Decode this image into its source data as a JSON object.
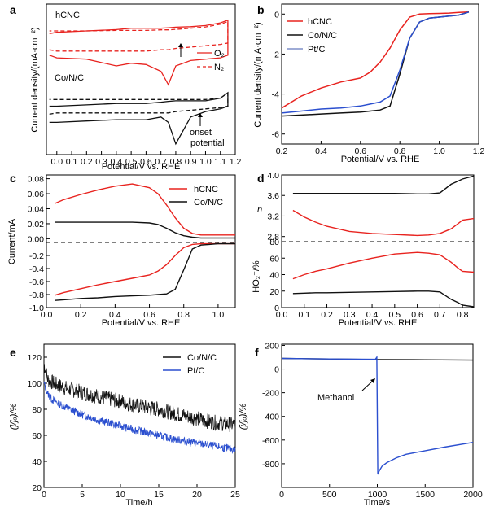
{
  "colors": {
    "red": "#e8231f",
    "black": "#111111",
    "blue": "#2b4fcf",
    "blue_light": "#7e8fc9"
  },
  "panels": {
    "a": {
      "label": "a",
      "xlabel": "Potential/V vs. RHE",
      "ylabel": "Current density/(mA·cm⁻²)",
      "xticks": [
        "0.0",
        "0.1",
        "0.2",
        "0.3",
        "0.4",
        "0.5",
        "0.6",
        "0.7",
        "0.8",
        "0.9",
        "1.0",
        "1.1",
        "1.2"
      ],
      "text_top": "hCNC",
      "text_bottom": "Co/N/C",
      "legend_o2": "O₂",
      "legend_n2": "N₂",
      "annotation_line1": "onset",
      "annotation_line2": "potential"
    },
    "b": {
      "label": "b",
      "xlabel": "Potential/V vs. RHE",
      "ylabel": "Current density/(mA·cm⁻²)",
      "xticks": [
        "0.2",
        "0.4",
        "0.6",
        "0.8",
        "1.0",
        "1.2"
      ],
      "yticks": [
        "0",
        "-2",
        "-4",
        "-6"
      ],
      "legend": [
        "hCNC",
        "Co/N/C",
        "Pt/C"
      ]
    },
    "c": {
      "label": "c",
      "xlabel": "Potential/V vs. RHE",
      "ylabel": "Current/mA",
      "xticks": [
        "0.0",
        "0.2",
        "0.4",
        "0.6",
        "0.8",
        "1.0"
      ],
      "yticks_top": [
        "0.08",
        "0.06",
        "0.04",
        "0.02",
        "0.00"
      ],
      "yticks_bottom": [
        "-0.2",
        "-0.4",
        "-0.6",
        "-0.8",
        "-1.0"
      ],
      "legend": [
        "hCNC",
        "Co/N/C"
      ]
    },
    "d": {
      "label": "d",
      "xlabel": "Potential/V vs. RHE",
      "ylabel_top": "n",
      "ylabel_bottom": "HO₂⁻/%",
      "xticks": [
        "0.0",
        "0.1",
        "0.2",
        "0.3",
        "0.4",
        "0.5",
        "0.6",
        "0.7",
        "0.8"
      ],
      "yticks_top": [
        "4.0",
        "3.6",
        "3.2",
        "2.8"
      ],
      "yticks_bottom": [
        "80",
        "60",
        "40",
        "20",
        "0"
      ]
    },
    "e": {
      "label": "e",
      "xlabel": "Time/h",
      "ylabel": "(j/jₒ)/%",
      "xticks": [
        "0",
        "5",
        "10",
        "15",
        "20",
        "25"
      ],
      "yticks": [
        "120",
        "100",
        "80",
        "60",
        "40",
        "20"
      ],
      "legend": [
        "Co/N/C",
        "Pt/C"
      ]
    },
    "f": {
      "label": "f",
      "xlabel": "Time/s",
      "ylabel": "(j/jₒ)/%",
      "xticks": [
        "0",
        "500",
        "1000",
        "1500",
        "2000"
      ],
      "yticks": [
        "200",
        "0",
        "-200",
        "-400",
        "-600",
        "-800"
      ],
      "annotation": "Methanol"
    }
  },
  "chart_data": [
    {
      "panel": "a",
      "type": "line",
      "xlabel": "Potential/V vs. RHE",
      "ylabel": "Current density/(mA·cm⁻²)",
      "xlim": [
        -0.07,
        1.2
      ],
      "x": [
        -0.05,
        0.0,
        0.2,
        0.4,
        0.5,
        0.6,
        0.7,
        0.75,
        0.8,
        0.9,
        1.0,
        1.1,
        1.15
      ],
      "series": [
        {
          "name": "hCNC O₂",
          "style": "solid",
          "color": "#e8231f",
          "cathodic": [
            0.1,
            0.0,
            -0.05,
            -0.3,
            -0.2,
            -0.25,
            -0.5,
            -1.0,
            -0.3,
            -0.1,
            -0.05,
            0.0,
            0.1
          ],
          "anodic": [
            0.9,
            0.95,
            1.0,
            1.05,
            1.1,
            1.1,
            1.1,
            1.12,
            1.14,
            1.16,
            1.2,
            1.3,
            1.4
          ]
        },
        {
          "name": "hCNC N₂",
          "style": "dashed",
          "color": "#e8231f",
          "cathodic": [
            0.3,
            0.25,
            0.25,
            0.25,
            0.25,
            0.25,
            0.3,
            0.3,
            0.35,
            0.4,
            0.45,
            0.5,
            0.55
          ],
          "anodic": [
            1.0,
            1.0,
            1.0,
            1.02,
            1.02,
            1.02,
            1.04,
            1.04,
            1.06,
            1.1,
            1.15,
            1.25,
            1.35
          ]
        },
        {
          "name": "Co/N/C O₂",
          "style": "solid",
          "color": "#111111",
          "cathodic": [
            -2.4,
            -2.4,
            -2.35,
            -2.3,
            -2.3,
            -2.3,
            -2.2,
            -2.4,
            -3.2,
            -2.2,
            -2.0,
            -1.9,
            -1.8
          ],
          "anodic": [
            -1.8,
            -1.8,
            -1.75,
            -1.7,
            -1.7,
            -1.7,
            -1.65,
            -1.62,
            -1.6,
            -1.6,
            -1.6,
            -1.5,
            -1.3
          ]
        },
        {
          "name": "Co/N/C N₂",
          "style": "dashed",
          "color": "#111111",
          "cathodic": [
            -2.1,
            -2.05,
            -2.05,
            -2.05,
            -2.05,
            -2.05,
            -2.05,
            -2.05,
            -2.0,
            -1.95,
            -1.9,
            -1.85,
            -1.8
          ],
          "anodic": [
            -1.55,
            -1.55,
            -1.55,
            -1.55,
            -1.55,
            -1.55,
            -1.55,
            -1.55,
            -1.55,
            -1.55,
            -1.55,
            -1.5,
            -1.3
          ]
        }
      ]
    },
    {
      "panel": "b",
      "type": "line",
      "xlabel": "Potential/V vs. RHE",
      "ylabel": "Current density/(mA·cm⁻²)",
      "xlim": [
        0.2,
        1.2
      ],
      "ylim": [
        -6.5,
        0.5
      ],
      "x": [
        0.2,
        0.3,
        0.4,
        0.5,
        0.6,
        0.65,
        0.7,
        0.75,
        0.8,
        0.85,
        0.9,
        0.95,
        1.0,
        1.05,
        1.1,
        1.15
      ],
      "series": [
        {
          "name": "hCNC",
          "color": "#e8231f",
          "values": [
            -4.7,
            -4.1,
            -3.7,
            -3.4,
            -3.2,
            -2.9,
            -2.4,
            -1.7,
            -0.8,
            -0.15,
            0.0,
            0.02,
            0.03,
            0.05,
            0.08,
            0.1
          ]
        },
        {
          "name": "Co/N/C",
          "color": "#111111",
          "values": [
            -5.1,
            -5.05,
            -5.0,
            -4.95,
            -4.9,
            -4.85,
            -4.8,
            -4.6,
            -3.0,
            -1.2,
            -0.4,
            -0.2,
            -0.15,
            -0.1,
            -0.05,
            0.1
          ]
        },
        {
          "name": "Pt/C",
          "color": "#2b4fcf",
          "values": [
            -4.95,
            -4.85,
            -4.75,
            -4.7,
            -4.6,
            -4.5,
            -4.4,
            -4.1,
            -2.8,
            -1.2,
            -0.4,
            -0.2,
            -0.15,
            -0.1,
            -0.05,
            0.1
          ]
        }
      ]
    },
    {
      "panel": "c",
      "type": "line",
      "xlabel": "Potential/V vs. RHE",
      "xlim": [
        0,
        1.1
      ],
      "x": [
        0.05,
        0.1,
        0.2,
        0.3,
        0.4,
        0.5,
        0.6,
        0.65,
        0.7,
        0.75,
        0.8,
        0.85,
        0.9,
        1.0,
        1.1
      ],
      "ring_ylim": [
        -0.005,
        0.085
      ],
      "ring_ylabel": "Current/mA",
      "ring_series": [
        {
          "name": "hCNC",
          "color": "#e8231f",
          "values": [
            0.047,
            0.052,
            0.059,
            0.065,
            0.07,
            0.073,
            0.068,
            0.06,
            0.045,
            0.028,
            0.014,
            0.007,
            0.005,
            0.005,
            0.005
          ]
        },
        {
          "name": "Co/N/C",
          "color": "#111111",
          "values": [
            0.022,
            0.022,
            0.022,
            0.022,
            0.022,
            0.022,
            0.021,
            0.019,
            0.014,
            0.008,
            0.004,
            0.002,
            0.001,
            0.001,
            0.001
          ]
        }
      ],
      "disk_ylim": [
        -1.0,
        0.0
      ],
      "disk_series": [
        {
          "name": "hCNC",
          "color": "#e8231f",
          "values": [
            -0.81,
            -0.77,
            -0.71,
            -0.65,
            -0.6,
            -0.55,
            -0.5,
            -0.44,
            -0.34,
            -0.2,
            -0.08,
            -0.03,
            -0.02,
            -0.02,
            -0.02
          ]
        },
        {
          "name": "Co/N/C",
          "color": "#111111",
          "values": [
            -0.89,
            -0.88,
            -0.86,
            -0.85,
            -0.83,
            -0.82,
            -0.81,
            -0.8,
            -0.79,
            -0.72,
            -0.42,
            -0.1,
            -0.04,
            -0.02,
            -0.02
          ]
        }
      ]
    },
    {
      "panel": "d",
      "type": "line",
      "xlabel": "Potential/V vs. RHE",
      "xlim": [
        0,
        0.85
      ],
      "x": [
        0.05,
        0.1,
        0.15,
        0.2,
        0.3,
        0.4,
        0.5,
        0.6,
        0.65,
        0.7,
        0.75,
        0.78,
        0.8,
        0.85
      ],
      "n_ylim": [
        2.7,
        4.0
      ],
      "n_series": [
        {
          "name": "hCNC",
          "color": "#e8231f",
          "values": [
            3.31,
            3.18,
            3.08,
            3.0,
            2.9,
            2.86,
            2.84,
            2.82,
            2.83,
            2.86,
            2.95,
            3.05,
            3.12,
            3.15
          ]
        },
        {
          "name": "Co/N/C",
          "color": "#111111",
          "values": [
            3.64,
            3.64,
            3.64,
            3.64,
            3.64,
            3.64,
            3.64,
            3.63,
            3.63,
            3.65,
            3.82,
            3.88,
            3.92,
            3.98
          ]
        }
      ],
      "ho2_ylim": [
        0,
        80
      ],
      "ho2_series": [
        {
          "name": "hCNC",
          "color": "#e8231f",
          "values": [
            35,
            40,
            44,
            47,
            54,
            60,
            65,
            67,
            66,
            64,
            55,
            48,
            44,
            43
          ]
        },
        {
          "name": "Co/N/C",
          "color": "#111111",
          "values": [
            17,
            17.5,
            18,
            18,
            18.5,
            19,
            19.5,
            20,
            20,
            19,
            10,
            6,
            3,
            1
          ]
        }
      ]
    },
    {
      "panel": "e",
      "type": "line",
      "xlabel": "Time/h",
      "ylabel": "(j/jₒ)/%",
      "xlim": [
        0,
        25
      ],
      "ylim": [
        20,
        130
      ],
      "x": [
        0,
        0.5,
        1,
        2,
        3,
        5,
        7,
        10,
        12,
        15,
        17,
        20,
        22,
        25
      ],
      "series": [
        {
          "name": "Co/N/C",
          "color": "#111111",
          "values": [
            115,
            103,
            101,
            98,
            96,
            93,
            90,
            86,
            83,
            80,
            77,
            73,
            70,
            68
          ]
        },
        {
          "name": "Pt/C",
          "color": "#2b4fcf",
          "values": [
            100,
            92,
            88,
            84,
            81,
            76,
            72,
            67,
            64,
            60,
            57,
            54,
            52,
            49
          ]
        }
      ]
    },
    {
      "panel": "f",
      "type": "line",
      "xlabel": "Time/s",
      "ylabel": "(j/jₒ)/%",
      "xlim": [
        0,
        2000
      ],
      "ylim": [
        -1000,
        210
      ],
      "series": [
        {
          "name": "Co/N/C",
          "color": "#111111",
          "x": [
            0,
            500,
            1000,
            1500,
            2000
          ],
          "values": [
            90,
            85,
            80,
            78,
            75
          ]
        },
        {
          "name": "Pt/C",
          "color": "#2b4fcf",
          "x": [
            0,
            500,
            980,
            995,
            1005,
            1020,
            1050,
            1100,
            1200,
            1300,
            1500,
            1700,
            2000
          ],
          "values": [
            90,
            85,
            82,
            100,
            -890,
            -860,
            -820,
            -790,
            -750,
            -720,
            -690,
            -660,
            -620
          ]
        }
      ]
    }
  ]
}
